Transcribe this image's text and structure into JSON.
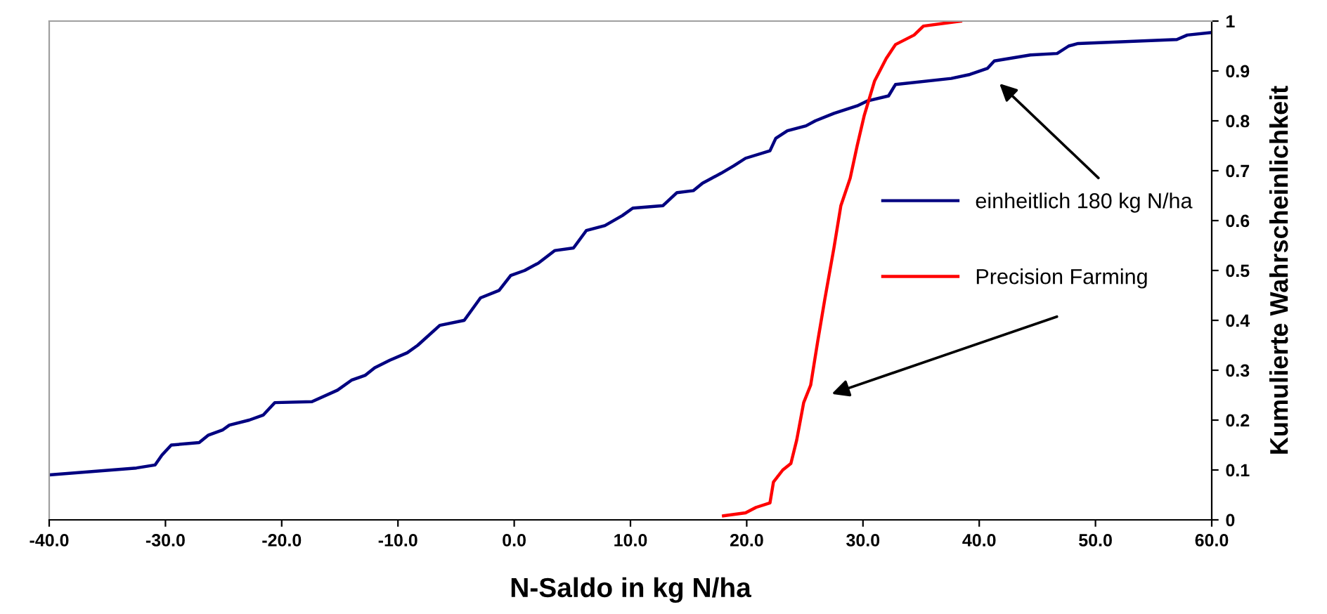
{
  "chart_data": {
    "type": "line",
    "xlabel": "N-Saldo in kg N/ha",
    "ylabel": "Kumulierte Wahrscheinlichkeit",
    "xlim": [
      -40,
      60
    ],
    "ylim": [
      0,
      1
    ],
    "xticks": [
      {
        "value": -40,
        "label": "-40.0"
      },
      {
        "value": -30,
        "label": "-30.0"
      },
      {
        "value": -20,
        "label": "-20.0"
      },
      {
        "value": -10,
        "label": "-10.0"
      },
      {
        "value": 0,
        "label": "0.0"
      },
      {
        "value": 10,
        "label": "10.0"
      },
      {
        "value": 20,
        "label": "20.0"
      },
      {
        "value": 30,
        "label": "30.0"
      },
      {
        "value": 40,
        "label": "40.0"
      },
      {
        "value": 50,
        "label": "50.0"
      },
      {
        "value": 60,
        "label": "60.0"
      }
    ],
    "yticks": [
      0,
      0.1,
      0.2,
      0.3,
      0.4,
      0.5,
      0.6,
      0.7,
      0.8,
      0.9,
      1
    ],
    "grid": false,
    "legend": "right",
    "marker": "none",
    "line_style": "solid",
    "series": [
      {
        "name": "einheitlich 180 kg N/ha",
        "color": "#000080",
        "x": [
          -40,
          -32.5,
          -30.9,
          -30.3,
          -29.5,
          -27.1,
          -26.3,
          -25.1,
          -24.5,
          -22.8,
          -21.6,
          -20.6,
          -17.4,
          -15.2,
          -14.0,
          -12.8,
          -12.0,
          -10.7,
          -9.2,
          -8.3,
          -6.4,
          -4.3,
          -2.9,
          -1.3,
          -0.3,
          0.9,
          2.1,
          3.5,
          5.1,
          6.2,
          7.8,
          9.3,
          10.2,
          12.8,
          14.0,
          15.4,
          16.2,
          17.8,
          18.9,
          19.9,
          22.0,
          22.5,
          23.5,
          25.1,
          25.9,
          27.5,
          29.5,
          30.4,
          32.2,
          32.8,
          37.6,
          39.2,
          40.7,
          41.3,
          44.4,
          46.7,
          47.7,
          48.5,
          57.0,
          57.9,
          60.0
        ],
        "values": [
          0.09,
          0.104,
          0.11,
          0.13,
          0.15,
          0.155,
          0.17,
          0.18,
          0.19,
          0.2,
          0.21,
          0.235,
          0.237,
          0.26,
          0.28,
          0.29,
          0.305,
          0.32,
          0.335,
          0.35,
          0.39,
          0.4,
          0.445,
          0.46,
          0.49,
          0.5,
          0.515,
          0.54,
          0.545,
          0.58,
          0.59,
          0.61,
          0.625,
          0.63,
          0.656,
          0.66,
          0.675,
          0.695,
          0.71,
          0.725,
          0.74,
          0.765,
          0.78,
          0.79,
          0.8,
          0.815,
          0.83,
          0.84,
          0.85,
          0.873,
          0.885,
          0.893,
          0.905,
          0.92,
          0.932,
          0.935,
          0.95,
          0.955,
          0.963,
          0.972,
          0.977
        ]
      },
      {
        "name": "Precision Farming",
        "color": "#ff0000",
        "x": [
          18.0,
          19.9,
          20.8,
          22.0,
          22.3,
          23.1,
          23.8,
          24.3,
          24.9,
          25.5,
          26.1,
          26.7,
          27.5,
          28.1,
          28.9,
          29.5,
          30.1,
          31.0,
          32.0,
          32.8,
          34.4,
          35.2,
          38.4
        ],
        "values": [
          0.008,
          0.014,
          0.025,
          0.034,
          0.076,
          0.1,
          0.113,
          0.16,
          0.235,
          0.27,
          0.357,
          0.44,
          0.545,
          0.63,
          0.685,
          0.75,
          0.81,
          0.88,
          0.925,
          0.953,
          0.972,
          0.99,
          1.0
        ]
      }
    ]
  }
}
